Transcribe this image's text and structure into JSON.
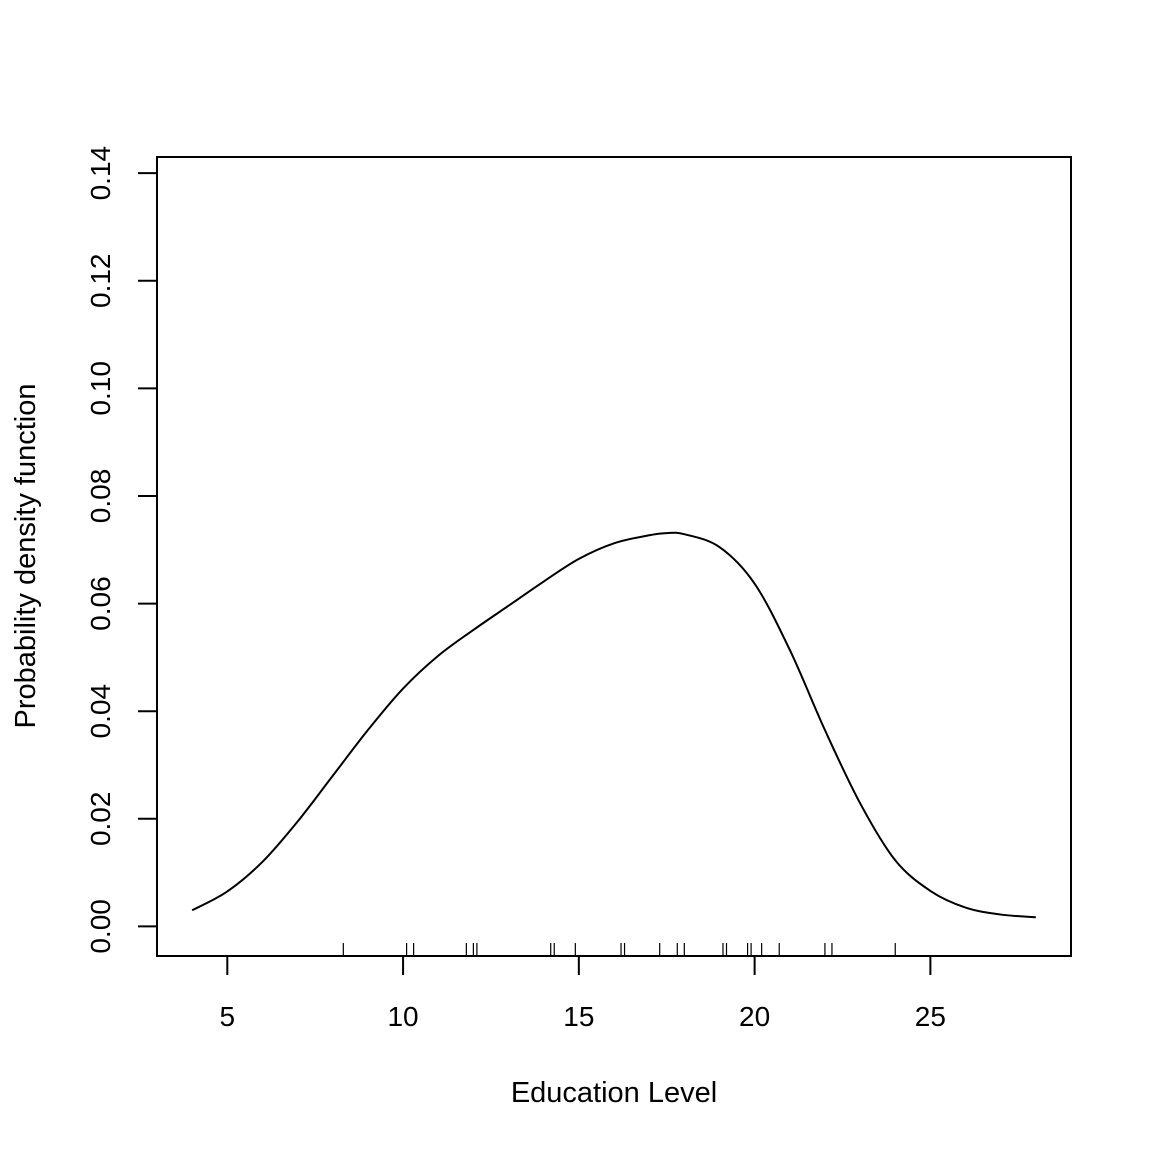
{
  "chart_data": {
    "type": "line",
    "title": "",
    "xlabel": "Education Level",
    "ylabel": "Probability density function",
    "xlim": [
      3,
      29
    ],
    "ylim": [
      -0.0055,
      0.143
    ],
    "x_ticks": [
      5,
      10,
      15,
      20,
      25
    ],
    "x_tick_labels": [
      "5",
      "10",
      "15",
      "20",
      "25"
    ],
    "y_ticks": [
      0.0,
      0.02,
      0.04,
      0.06,
      0.08,
      0.1,
      0.12,
      0.14
    ],
    "y_tick_labels": [
      "0.00",
      "0.02",
      "0.04",
      "0.06",
      "0.08",
      "0.10",
      "0.12",
      "0.14"
    ],
    "grid": false,
    "box": true,
    "series": [
      {
        "x": [
          4,
          5,
          6,
          7,
          8,
          9,
          10,
          11,
          12,
          13,
          14,
          15,
          16,
          17,
          17.5,
          18,
          19,
          20,
          21,
          22,
          23,
          24,
          25,
          26,
          27,
          28
        ],
        "y": [
          0.003,
          0.0065,
          0.012,
          0.0195,
          0.028,
          0.0365,
          0.0442,
          0.0503,
          0.0551,
          0.0596,
          0.0641,
          0.0683,
          0.0712,
          0.0727,
          0.0731,
          0.0729,
          0.0705,
          0.0637,
          0.0514,
          0.0365,
          0.0229,
          0.0123,
          0.0066,
          0.0035,
          0.0022,
          0.0017
        ]
      }
    ],
    "rug": [
      8.3,
      10.1,
      10.3,
      11.8,
      12.0,
      12.1,
      14.2,
      14.3,
      14.9,
      16.2,
      16.3,
      17.3,
      17.8,
      18.0,
      19.1,
      19.2,
      19.8,
      19.9,
      20.2,
      20.7,
      22.0,
      22.2,
      24.0
    ]
  }
}
